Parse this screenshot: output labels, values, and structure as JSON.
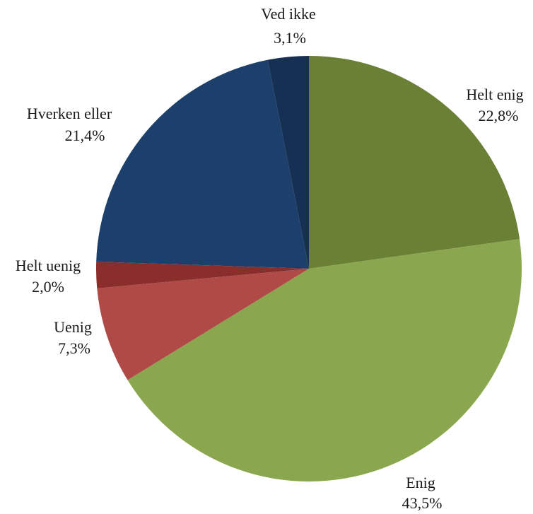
{
  "chart_data": {
    "type": "pie",
    "categories": [
      "Helt enig",
      "Enig",
      "Uenig",
      "Helt uenig",
      "Hverken eller",
      "Ved ikke"
    ],
    "values": [
      22.8,
      43.5,
      7.3,
      2.0,
      21.4,
      3.1
    ],
    "value_labels": [
      "22,8%",
      "43,5%",
      "7,3%",
      "2,0%",
      "21,4%",
      "3,1%"
    ],
    "colors": [
      "#6a8035",
      "#8aa64e",
      "#b04a47",
      "#8a2e2c",
      "#1c406b",
      "#163054"
    ]
  }
}
